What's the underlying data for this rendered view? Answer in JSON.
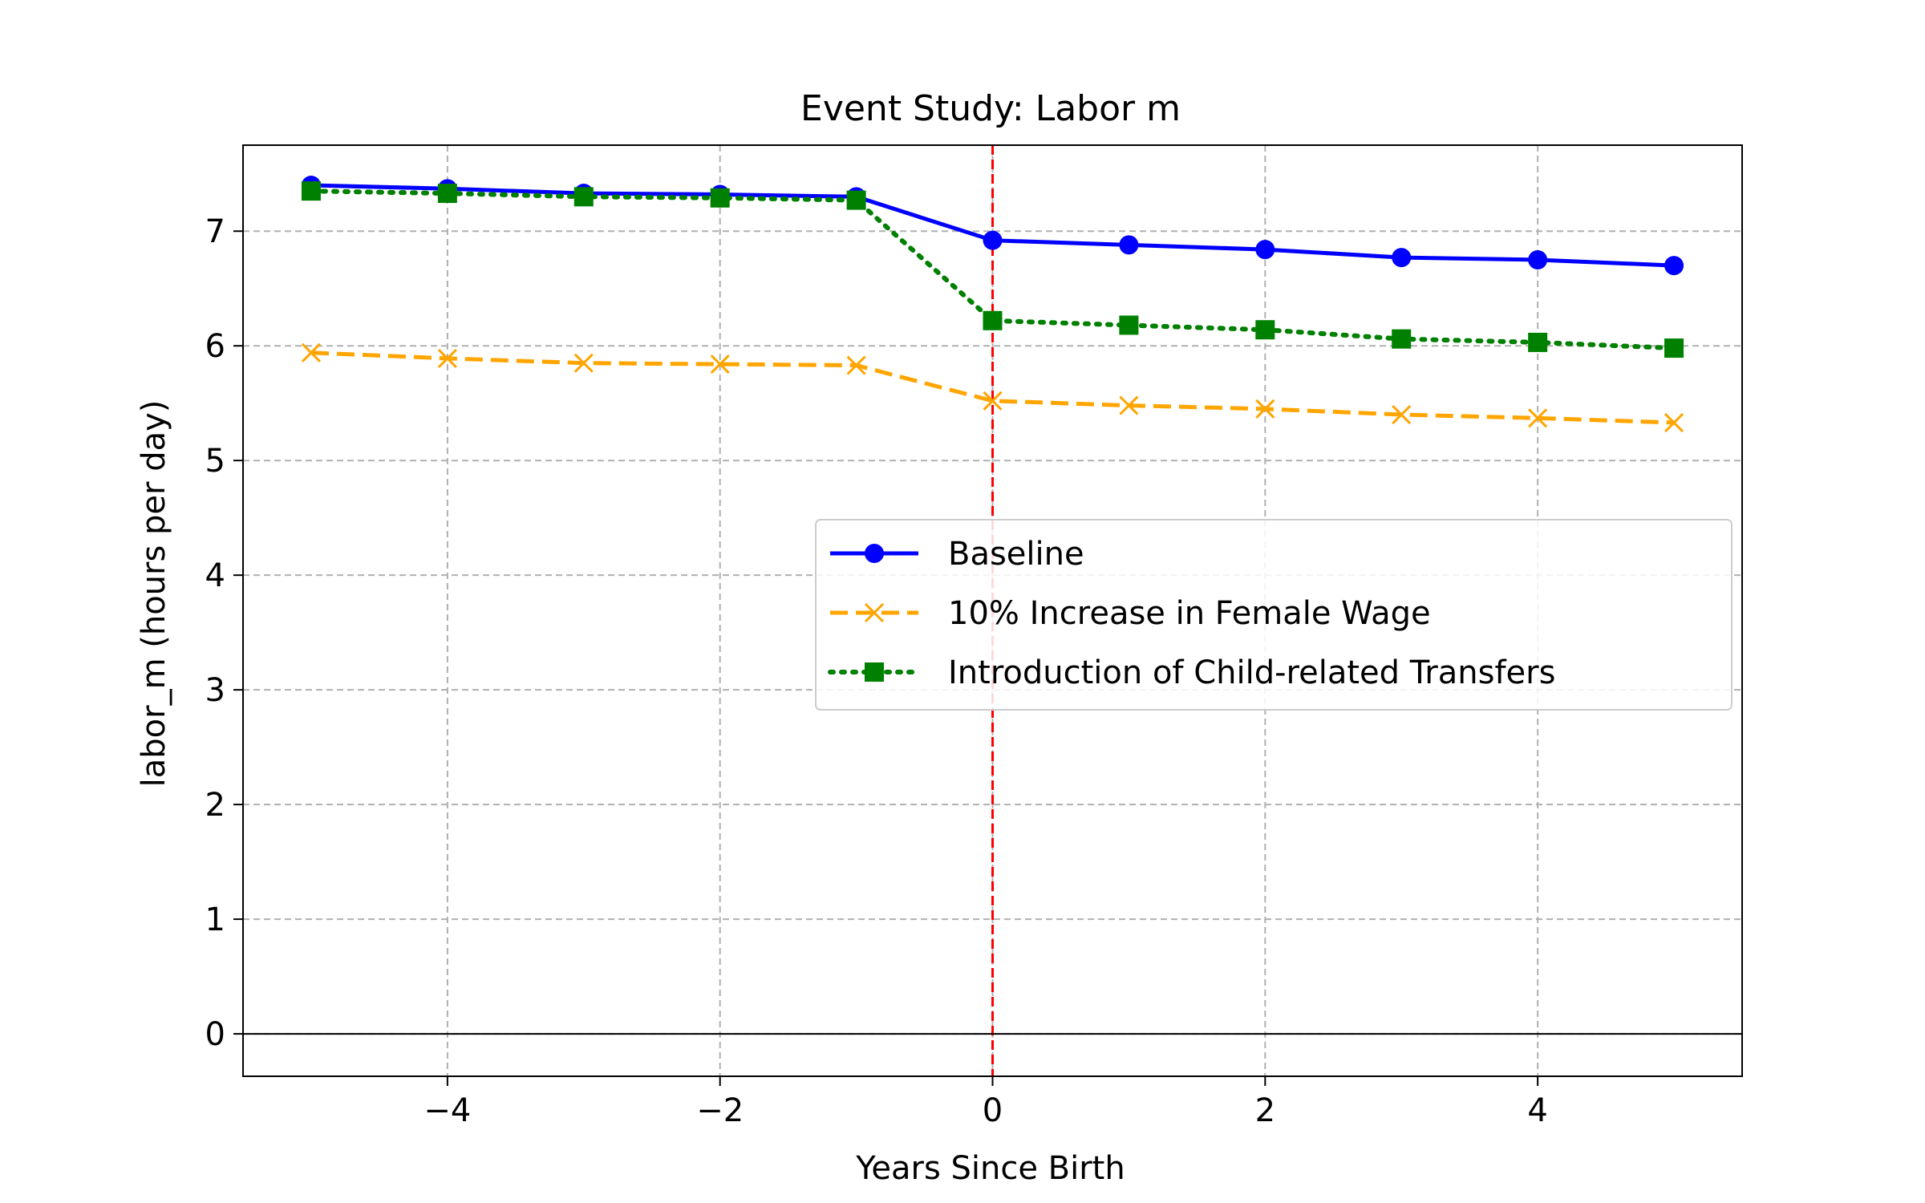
{
  "chart_data": {
    "type": "line",
    "title": "Event Study: Labor m",
    "xlabel": "Years Since Birth",
    "ylabel": "labor_m (hours per day)",
    "xlim": [
      -5.5,
      5.5
    ],
    "ylim": [
      -0.37,
      7.75
    ],
    "xticks": [
      -4,
      -2,
      0,
      2,
      4
    ],
    "xtick_labels": [
      "−4",
      "−2",
      "0",
      "2",
      "4"
    ],
    "yticks": [
      0,
      1,
      2,
      3,
      4,
      5,
      6,
      7
    ],
    "ytick_labels": [
      "0",
      "1",
      "2",
      "3",
      "4",
      "5",
      "6",
      "7"
    ],
    "grid": true,
    "legend_position": "center-right",
    "x": [
      -5,
      -4,
      -3,
      -2,
      -1,
      0,
      1,
      2,
      3,
      4,
      5
    ],
    "series": [
      {
        "name": "Baseline",
        "color": "#0000ff",
        "linestyle": "solid",
        "marker": "circle",
        "values": [
          7.4,
          7.37,
          7.33,
          7.32,
          7.3,
          6.92,
          6.88,
          6.84,
          6.77,
          6.75,
          6.7
        ]
      },
      {
        "name": "10% Increase in Female Wage",
        "color": "#ffa500",
        "linestyle": "dashed",
        "marker": "x",
        "values": [
          5.94,
          5.89,
          5.85,
          5.84,
          5.83,
          5.52,
          5.48,
          5.45,
          5.4,
          5.37,
          5.33
        ]
      },
      {
        "name": "Introduction of Child-related Transfers",
        "color": "#008000",
        "linestyle": "dotted",
        "marker": "square",
        "values": [
          7.35,
          7.33,
          7.3,
          7.29,
          7.27,
          6.22,
          6.18,
          6.14,
          6.06,
          6.03,
          5.98
        ]
      }
    ],
    "annotations": [
      {
        "kind": "vertical-line",
        "x": 0,
        "color": "#ff0000",
        "linestyle": "dashed"
      },
      {
        "kind": "horizontal-line",
        "y": 0,
        "color": "#000000",
        "linestyle": "solid"
      }
    ]
  }
}
